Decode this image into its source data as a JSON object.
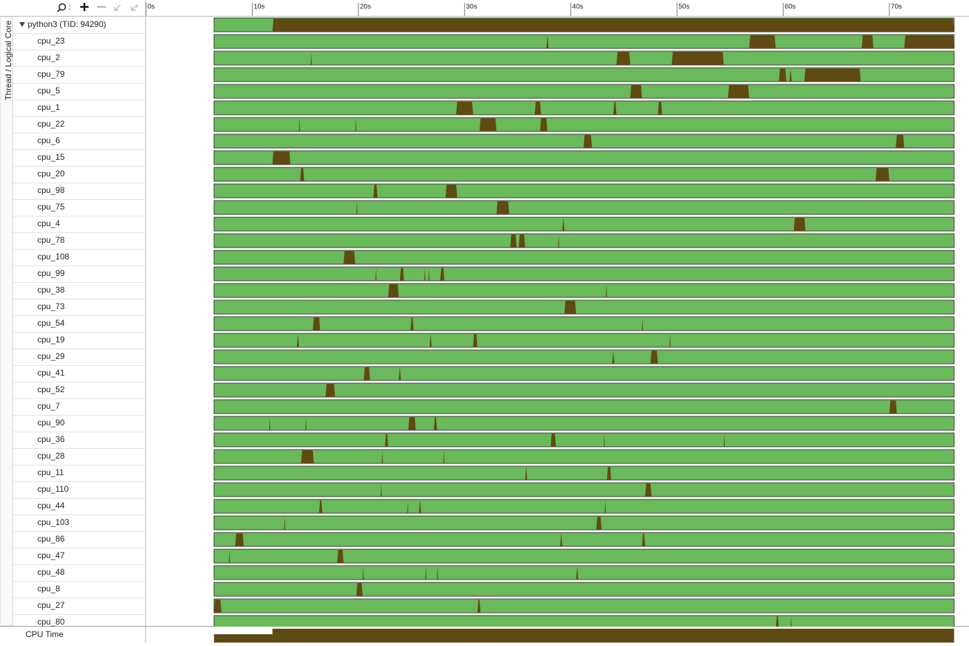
{
  "toolbar": {
    "label": ":"
  },
  "side_label": "Thread / Logical Core",
  "axis": {
    "xlim": [
      0,
      77.5
    ],
    "ticks": [
      {
        "value": 0,
        "label": "0s"
      },
      {
        "value": 10,
        "label": "10s"
      },
      {
        "value": 20,
        "label": "20s"
      },
      {
        "value": 30,
        "label": "30s"
      },
      {
        "value": 40,
        "label": "40s"
      },
      {
        "value": 50,
        "label": "50s"
      },
      {
        "value": 60,
        "label": "60s"
      },
      {
        "value": 70,
        "label": "70s"
      }
    ]
  },
  "active_range": [
    6.4,
    76.1
  ],
  "colors": {
    "idle": "#6ab95a",
    "busy": "#5f4a14"
  },
  "process": {
    "label": "python3 (TID: 94290)",
    "busy": [
      [
        11.9,
        76.1
      ]
    ]
  },
  "cores": [
    {
      "label": "cpu_23",
      "busy": [
        [
          37.7,
          37.9
        ],
        [
          56.8,
          59.3
        ],
        [
          67.4,
          68.5
        ],
        [
          71.4,
          76.1
        ]
      ]
    },
    {
      "label": "cpu_2",
      "busy": [
        [
          15.5,
          15.6
        ],
        [
          44.3,
          45.6
        ],
        [
          49.5,
          54.4
        ]
      ]
    },
    {
      "label": "cpu_79",
      "busy": [
        [
          59.6,
          60.3
        ],
        [
          60.6,
          60.8
        ],
        [
          62.0,
          67.3
        ]
      ]
    },
    {
      "label": "cpu_5",
      "busy": [
        [
          45.6,
          46.7
        ],
        [
          54.8,
          56.8
        ]
      ]
    },
    {
      "label": "cpu_1",
      "busy": [
        [
          29.2,
          30.8
        ],
        [
          36.6,
          37.2
        ],
        [
          44.0,
          44.3
        ],
        [
          48.2,
          48.6
        ]
      ]
    },
    {
      "label": "cpu_22",
      "busy": [
        [
          14.4,
          14.5
        ],
        [
          19.7,
          19.8
        ],
        [
          31.4,
          33.0
        ],
        [
          37.1,
          37.8
        ]
      ]
    },
    {
      "label": "cpu_6",
      "busy": [
        [
          41.2,
          42.0
        ],
        [
          70.6,
          71.4
        ]
      ]
    },
    {
      "label": "cpu_15",
      "busy": [
        [
          11.9,
          13.6
        ]
      ]
    },
    {
      "label": "cpu_20",
      "busy": [
        [
          14.5,
          14.9
        ],
        [
          68.7,
          70.0
        ]
      ]
    },
    {
      "label": "cpu_98",
      "busy": [
        [
          21.4,
          21.8
        ],
        [
          28.2,
          29.3
        ]
      ]
    },
    {
      "label": "cpu_75",
      "busy": [
        [
          19.8,
          19.9
        ],
        [
          33.0,
          34.2
        ]
      ]
    },
    {
      "label": "cpu_4",
      "busy": [
        [
          39.2,
          39.4
        ],
        [
          61.0,
          62.1
        ]
      ]
    },
    {
      "label": "cpu_78",
      "busy": [
        [
          34.3,
          34.9
        ],
        [
          35.1,
          35.7
        ],
        [
          38.8,
          38.9
        ]
      ]
    },
    {
      "label": "cpu_108",
      "busy": [
        [
          18.6,
          19.7
        ]
      ]
    },
    {
      "label": "cpu_99",
      "busy": [
        [
          21.6,
          21.7
        ],
        [
          23.9,
          24.3
        ],
        [
          26.2,
          26.3
        ],
        [
          26.6,
          26.7
        ],
        [
          27.7,
          28.1
        ]
      ]
    },
    {
      "label": "cpu_38",
      "busy": [
        [
          22.8,
          23.8
        ],
        [
          43.3,
          43.4
        ]
      ]
    },
    {
      "label": "cpu_73",
      "busy": [
        [
          39.4,
          40.5
        ]
      ]
    },
    {
      "label": "cpu_54",
      "busy": [
        [
          15.7,
          16.4
        ],
        [
          24.9,
          25.2
        ],
        [
          46.7,
          46.8
        ]
      ]
    },
    {
      "label": "cpu_19",
      "busy": [
        [
          14.2,
          14.4
        ],
        [
          26.7,
          26.9
        ],
        [
          30.8,
          31.2
        ],
        [
          49.3,
          49.4
        ]
      ]
    },
    {
      "label": "cpu_29",
      "busy": [
        [
          43.9,
          44.1
        ],
        [
          47.5,
          48.2
        ]
      ]
    },
    {
      "label": "cpu_41",
      "busy": [
        [
          20.5,
          21.1
        ],
        [
          23.8,
          24.0
        ]
      ]
    },
    {
      "label": "cpu_52",
      "busy": [
        [
          16.9,
          17.8
        ]
      ]
    },
    {
      "label": "cpu_7",
      "busy": [
        [
          70.0,
          70.7
        ]
      ]
    },
    {
      "label": "cpu_90",
      "busy": [
        [
          11.6,
          11.7
        ],
        [
          15.0,
          15.1
        ],
        [
          24.7,
          25.4
        ],
        [
          27.1,
          27.4
        ]
      ]
    },
    {
      "label": "cpu_36",
      "busy": [
        [
          22.5,
          22.8
        ],
        [
          38.1,
          38.6
        ],
        [
          43.1,
          43.2
        ],
        [
          54.4,
          54.5
        ]
      ]
    },
    {
      "label": "cpu_28",
      "busy": [
        [
          14.6,
          15.8
        ],
        [
          22.2,
          22.3
        ],
        [
          28.0,
          28.1
        ]
      ]
    },
    {
      "label": "cpu_11",
      "busy": [
        [
          35.7,
          35.9
        ],
        [
          43.4,
          43.8
        ]
      ]
    },
    {
      "label": "cpu_110",
      "busy": [
        [
          22.1,
          22.2
        ],
        [
          47.0,
          47.6
        ]
      ]
    },
    {
      "label": "cpu_44",
      "busy": [
        [
          16.3,
          16.6
        ],
        [
          24.6,
          24.7
        ],
        [
          25.7,
          25.9
        ],
        [
          43.2,
          43.3
        ]
      ]
    },
    {
      "label": "cpu_103",
      "busy": [
        [
          13.0,
          13.1
        ],
        [
          42.4,
          42.9
        ]
      ]
    },
    {
      "label": "cpu_86",
      "busy": [
        [
          8.4,
          9.2
        ],
        [
          39.0,
          39.2
        ],
        [
          46.7,
          47.0
        ]
      ]
    },
    {
      "label": "cpu_47",
      "busy": [
        [
          7.8,
          7.9
        ],
        [
          18.0,
          18.6
        ]
      ]
    },
    {
      "label": "cpu_48",
      "busy": [
        [
          20.4,
          20.5
        ],
        [
          26.3,
          26.4
        ],
        [
          27.4,
          27.5
        ],
        [
          40.5,
          40.7
        ]
      ]
    },
    {
      "label": "cpu_8",
      "busy": [
        [
          19.8,
          20.4
        ]
      ]
    },
    {
      "label": "cpu_27",
      "busy": [
        [
          6.4,
          7.1
        ],
        [
          31.2,
          31.5
        ]
      ]
    },
    {
      "label": "cpu_80",
      "busy": [
        [
          59.3,
          59.6
        ],
        [
          60.7,
          60.8
        ]
      ]
    }
  ],
  "footer": {
    "label": "CPU Time",
    "segments": [
      {
        "range": [
          6.4,
          11.9
        ],
        "level": 0.6
      },
      {
        "range": [
          11.9,
          76.1
        ],
        "level": 1
      }
    ]
  }
}
